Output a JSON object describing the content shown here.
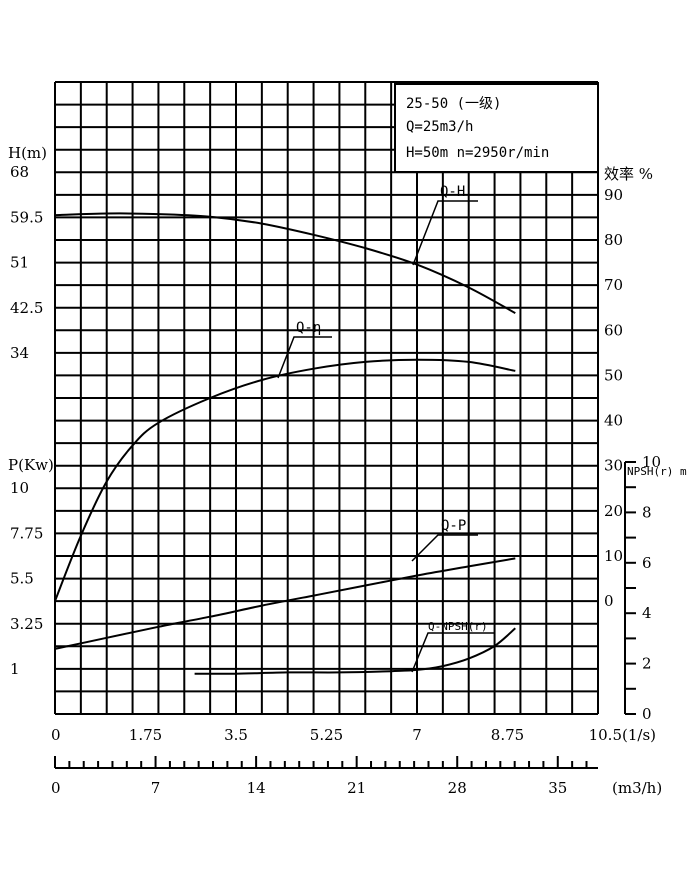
{
  "chart_data": {
    "type": "line",
    "info_box": [
      "25-50 (一级)",
      "Q=25m3/h",
      "H=50m  n=2950r/min"
    ],
    "axes": {
      "x_main": {
        "unit": "(1/s)",
        "range": [
          0,
          10.5
        ],
        "ticks": [
          {
            "v": 0,
            "label": "0"
          },
          {
            "v": 1.75,
            "label": "1.75"
          },
          {
            "v": 3.5,
            "label": "3.5"
          },
          {
            "v": 5.25,
            "label": "5.25"
          },
          {
            "v": 7,
            "label": "7"
          },
          {
            "v": 8.75,
            "label": "8.75"
          },
          {
            "v": 10.5,
            "label": "10.5"
          }
        ]
      },
      "x_second": {
        "unit": "(m3/h)",
        "range": [
          0,
          37.8
        ],
        "ticks": [
          {
            "v": 0,
            "label": "0"
          },
          {
            "v": 7,
            "label": "7"
          },
          {
            "v": 14,
            "label": "14"
          },
          {
            "v": 21,
            "label": "21"
          },
          {
            "v": 28,
            "label": "28"
          },
          {
            "v": 35,
            "label": "35"
          }
        ]
      },
      "head": {
        "label": "H(m)",
        "ticks": [
          {
            "v": 68,
            "label": "68"
          },
          {
            "v": 59.5,
            "label": "59.5"
          },
          {
            "v": 51,
            "label": "51"
          },
          {
            "v": 42.5,
            "label": "42.5"
          },
          {
            "v": 34,
            "label": "34"
          }
        ]
      },
      "power": {
        "label": "P(Kw)",
        "ticks": [
          {
            "v": 10,
            "label": "10"
          },
          {
            "v": 7.75,
            "label": "7.75"
          },
          {
            "v": 5.5,
            "label": "5.5"
          },
          {
            "v": 3.25,
            "label": "3.25"
          },
          {
            "v": 1,
            "label": "1"
          }
        ]
      },
      "efficiency": {
        "label": "效率 %",
        "ticks": [
          {
            "v": 90,
            "label": "90"
          },
          {
            "v": 80,
            "label": "80"
          },
          {
            "v": 70,
            "label": "70"
          },
          {
            "v": 60,
            "label": "60"
          },
          {
            "v": 50,
            "label": "50"
          },
          {
            "v": 40,
            "label": "40"
          },
          {
            "v": 30,
            "label": "30"
          },
          {
            "v": 20,
            "label": "20"
          },
          {
            "v": 10,
            "label": "10"
          },
          {
            "v": 0,
            "label": "0"
          }
        ]
      },
      "npsh": {
        "label": "NPSH(r) m",
        "ticks": [
          {
            "v": 10,
            "label": "10"
          },
          {
            "v": 8,
            "label": "8"
          },
          {
            "v": 6,
            "label": "6"
          },
          {
            "v": 4,
            "label": "4"
          },
          {
            "v": 2,
            "label": "2"
          },
          {
            "v": 0,
            "label": "0"
          }
        ]
      }
    },
    "series": [
      {
        "name": "Q-H",
        "axis": "head",
        "x": [
          0,
          1,
          2,
          3,
          4,
          5,
          6,
          7,
          8,
          8.9
        ],
        "y": [
          59.9,
          60.2,
          60.1,
          59.6,
          58.3,
          56.2,
          53.7,
          50.6,
          46.3,
          41.5
        ]
      },
      {
        "name": "Q-η",
        "axis": "efficiency",
        "x": [
          0,
          0.5,
          1,
          1.5,
          2,
          3,
          4,
          5,
          6,
          7,
          8,
          8.9
        ],
        "y": [
          0,
          14.5,
          26.5,
          34.5,
          39.5,
          45,
          49,
          51.5,
          53,
          53.5,
          53,
          51
        ]
      },
      {
        "name": "Q-P",
        "axis": "power",
        "x": [
          0,
          1,
          2,
          3,
          4,
          5,
          6,
          7,
          8,
          8.9
        ],
        "y": [
          2.0,
          2.55,
          3.1,
          3.6,
          4.15,
          4.65,
          5.15,
          5.65,
          6.1,
          6.5
        ]
      },
      {
        "name": "Q-NPSH(r)",
        "axis": "npsh",
        "x": [
          2.7,
          3.5,
          4.5,
          5.5,
          6.5,
          7,
          7.5,
          8,
          8.5,
          8.9
        ],
        "y": [
          1.6,
          1.6,
          1.65,
          1.65,
          1.7,
          1.75,
          1.9,
          2.2,
          2.7,
          3.4
        ]
      }
    ]
  }
}
